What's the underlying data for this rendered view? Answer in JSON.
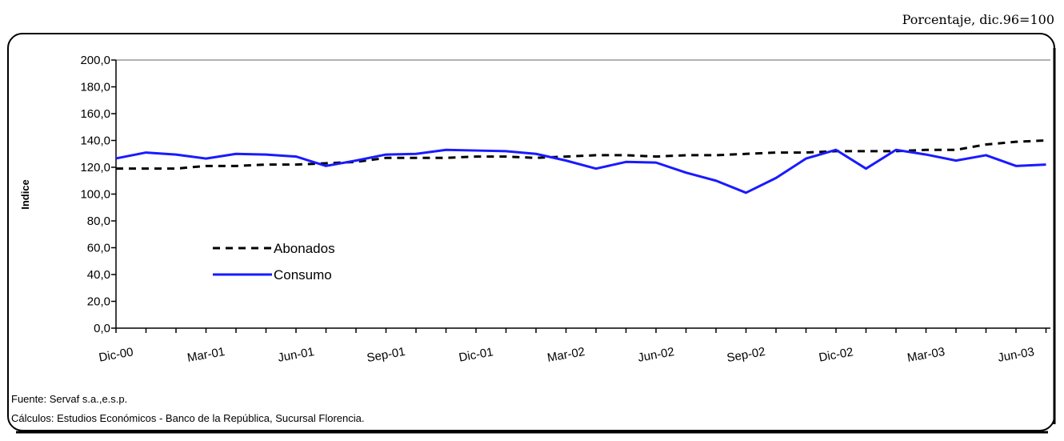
{
  "chart_data": {
    "type": "line",
    "subtitle": "Porcentaje, dic.96=100",
    "y_label": "Indice",
    "categories": [
      "Dic-00",
      null,
      null,
      "Mar-01",
      null,
      null,
      "Jun-01",
      null,
      null,
      "Sep-01",
      null,
      null,
      "Dic-01",
      null,
      null,
      "Mar-02",
      null,
      null,
      "Jun-02",
      null,
      null,
      "Sep-02",
      null,
      null,
      "Dic-02",
      null,
      null,
      "Mar-03",
      null,
      null,
      "Jun-03",
      null
    ],
    "series": [
      {
        "name": "Abonados",
        "color": "#000000",
        "dashed": true,
        "values": [
          119,
          119,
          119,
          121,
          121,
          122,
          122,
          123,
          124,
          127,
          127,
          127,
          128,
          128,
          127,
          128,
          129,
          129,
          128,
          129,
          129,
          130,
          131,
          131,
          132,
          132,
          132,
          133,
          133,
          137,
          139,
          140
        ]
      },
      {
        "name": "Consumo",
        "color": "#1a1aff",
        "dashed": false,
        "values": [
          126.6,
          131,
          129.5,
          126.5,
          130,
          129.5,
          128,
          121,
          125,
          129.5,
          130,
          133,
          132.5,
          132,
          130,
          125,
          119,
          124,
          123.5,
          116,
          110,
          101,
          112,
          126.5,
          133,
          119,
          133,
          129.5,
          125,
          129,
          121,
          122
        ]
      }
    ],
    "ylim": [
      0,
      200
    ],
    "yticks": [
      {
        "value": 0,
        "label": "0,0"
      },
      {
        "value": 20,
        "label": "20,0"
      },
      {
        "value": 40,
        "label": "40,0"
      },
      {
        "value": 60,
        "label": "60,0"
      },
      {
        "value": 80,
        "label": "80,0"
      },
      {
        "value": 100,
        "label": "100,0"
      },
      {
        "value": 120,
        "label": "120,0"
      },
      {
        "value": 140,
        "label": "140,0"
      },
      {
        "value": 160,
        "label": "160,0"
      },
      {
        "value": 180,
        "label": "180,0"
      },
      {
        "value": 200,
        "label": "200,0"
      }
    ],
    "notes": [
      "Fuente: Servaf s.a.,e.s.p.",
      "Cálculos:  Estudios Económicos - Banco de la República, Sucursal Florencia."
    ]
  }
}
